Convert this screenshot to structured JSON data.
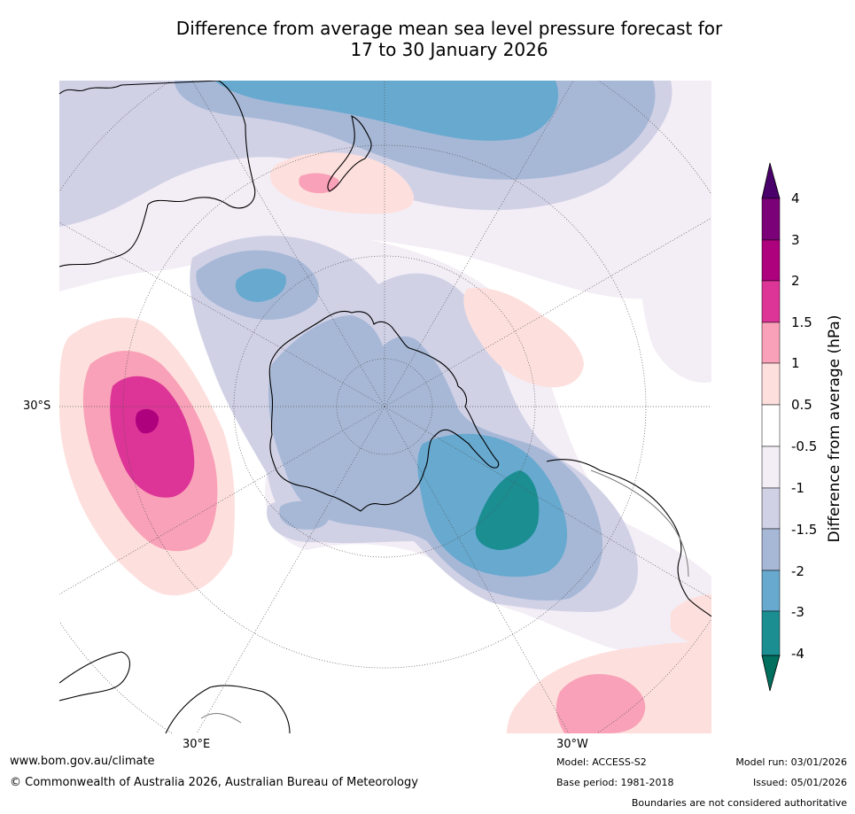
{
  "title": {
    "line1": "Difference from average mean sea level pressure forecast for",
    "line2": "17 to 30 January 2026"
  },
  "map": {
    "projection": "south polar stereographic",
    "lat_label": "30°S",
    "lon_labels": {
      "east": "30°E",
      "west": "30°W"
    },
    "colors": {
      "ocean": "#ffffff",
      "coast": "#000000",
      "border": "#7a7a7a",
      "grid": "#555555"
    }
  },
  "legend": {
    "title": "Difference from average (hPa)",
    "ticks": [
      "4",
      "3",
      "2",
      "1.5",
      "1",
      "0.5",
      "-0.5",
      "-1",
      "-1.5",
      "-2",
      "-3",
      "-4"
    ],
    "colors": {
      "below_min": "#006f5e",
      "neg4_neg3": "#1b8e92",
      "neg3_neg2": "#67a9cf",
      "neg2_neg1_5": "#a7b8d7",
      "neg1_5_neg1": "#d1d1e6",
      "neg1_neg0_5": "#f3edf5",
      "neg0_5_0_5": "#ffffff",
      "p0_5_1": "#fde0dd",
      "p1_1_5": "#f9a1b8",
      "p1_5_2": "#dd3497",
      "p2_3": "#ae017e",
      "p3_4": "#7a0177",
      "above_max": "#49006a"
    }
  },
  "footer": {
    "website": "www.bom.gov.au/climate",
    "copyright": "© Commonwealth of Australia 2026, Australian Bureau of Meteorology",
    "model": "Model: ACCESS-S2",
    "base_period": "Base period: 1981-2018",
    "model_run": "Model run: 03/01/2026",
    "issued": "Issued: 05/01/2026",
    "disclaimer": "Boundaries are not considered authoritative"
  }
}
